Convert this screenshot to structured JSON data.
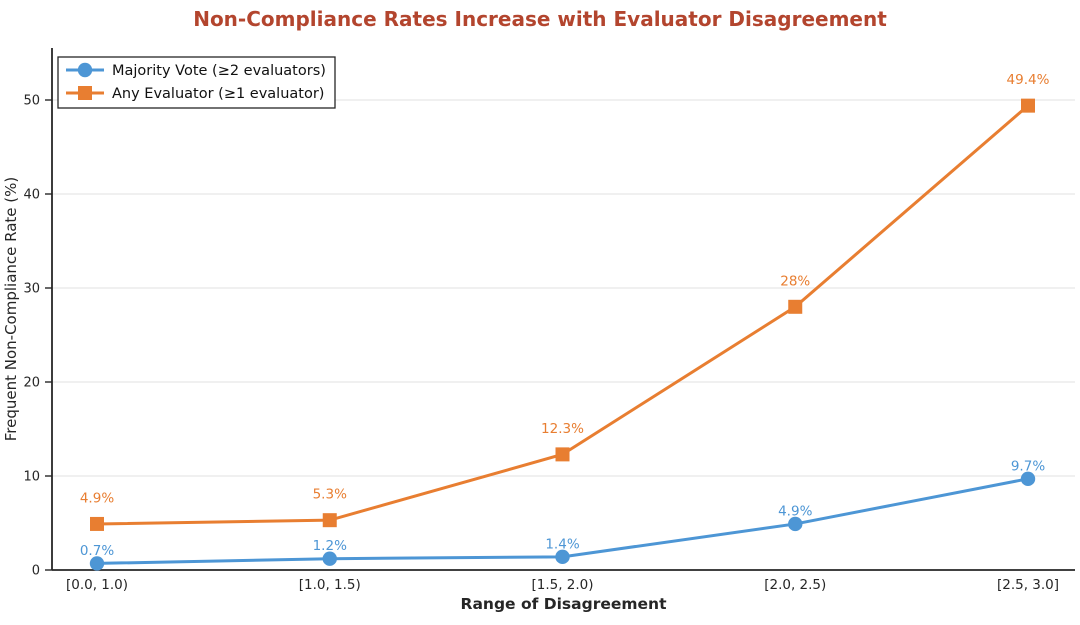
{
  "title": "Non-Compliance Rates Increase with Evaluator Disagreement",
  "colors": {
    "title": "#B3452E",
    "series_blue": "#4D96D5",
    "series_orange": "#E87E31",
    "grid": "#E8E8E8",
    "axis": "#262626",
    "tick_label": "#262626",
    "legend_border": "#262626",
    "background": "#FFFFFF"
  },
  "legend": {
    "items": [
      {
        "label": "Majority Vote (≥2 evaluators)",
        "marker": "circle",
        "color": "#4D96D5"
      },
      {
        "label": "Any Evaluator (≥1 evaluator)",
        "marker": "square",
        "color": "#E87E31"
      }
    ]
  },
  "chart_data": {
    "type": "line",
    "title": "Non-Compliance Rates Increase with Evaluator Disagreement",
    "categories": [
      "[0.0, 1.0)",
      "[1.0, 1.5)",
      "[1.5, 2.0)",
      "[2.0, 2.5)",
      "[2.5, 3.0]"
    ],
    "series": [
      {
        "name": "Majority Vote (≥2 evaluators)",
        "marker": "circle",
        "color": "#4D96D5",
        "values": [
          0.7,
          1.2,
          1.4,
          4.9,
          9.7
        ],
        "point_labels": [
          "0.7%",
          "1.2%",
          "1.4%",
          "4.9%",
          "9.7%"
        ]
      },
      {
        "name": "Any Evaluator (≥1 evaluator)",
        "marker": "square",
        "color": "#E87E31",
        "values": [
          4.9,
          5.3,
          12.3,
          28,
          49.4
        ],
        "point_labels": [
          "4.9%",
          "5.3%",
          "12.3%",
          "28%",
          "49.4%"
        ]
      }
    ],
    "xlabel": "Range of Disagreement",
    "ylabel": "Frequent Non-Compliance Rate (%)",
    "yticks": [
      0,
      10,
      20,
      30,
      40,
      50
    ],
    "ylim": [
      0,
      55.5
    ],
    "grid": "horizontal",
    "legend_position": "upper-left"
  }
}
